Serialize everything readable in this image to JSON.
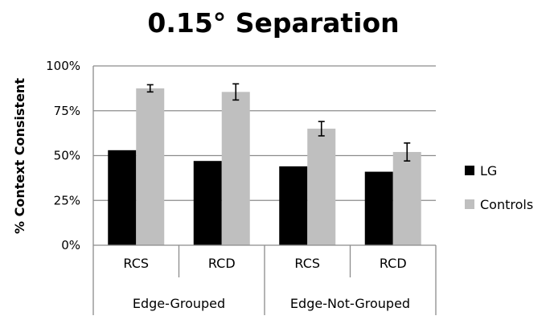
{
  "chart_data": {
    "type": "bar",
    "title": "0.15° Separation",
    "ylabel": "% Context Consistent",
    "xlabel": "",
    "ylim": [
      0,
      100
    ],
    "yticks": [
      0,
      25,
      50,
      75,
      100
    ],
    "ytick_labels": [
      "0%",
      "25%",
      "50%",
      "75%",
      "100%"
    ],
    "grid": true,
    "legend_position": "right",
    "categories": [
      "RCS",
      "RCD",
      "RCS",
      "RCD"
    ],
    "groups": [
      {
        "label": "Edge-Grouped",
        "span": [
          0,
          1
        ]
      },
      {
        "label": "Edge-Not-Grouped",
        "span": [
          2,
          3
        ]
      }
    ],
    "series": [
      {
        "name": "LG",
        "color": "#000000",
        "values": [
          53,
          47,
          44,
          41
        ],
        "errors": null
      },
      {
        "name": "Controls",
        "color": "#bfbfbf",
        "values": [
          87.5,
          85.5,
          65,
          52
        ],
        "errors": [
          2,
          4.5,
          4,
          5
        ]
      }
    ]
  }
}
